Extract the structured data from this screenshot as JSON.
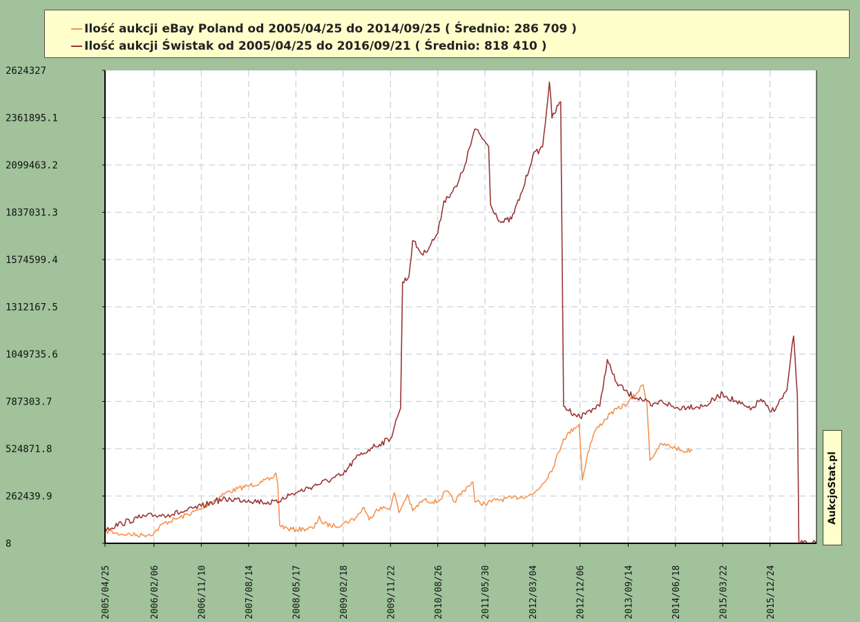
{
  "legend": {
    "items": [
      {
        "label": "Ilość aukcji eBay Poland od 2005/04/25 do 2014/09/25 ( Średnio:  286 709 )",
        "color": "#f4924f"
      },
      {
        "label": "Ilość aukcji Świstak od 2005/04/25 do 2016/09/21 ( Średnio:  818 410 )",
        "color": "#993333"
      }
    ]
  },
  "brand": "AukcjoStat.pl",
  "colors": {
    "background": "#a1c29b",
    "plot_bg": "#ffffff",
    "grid": "#c8d4dc",
    "legend_bg": "#ffffcc"
  },
  "chart_data": {
    "type": "line",
    "x_axis": {
      "type": "date",
      "range": [
        "2005/04/25",
        "2016/09/21"
      ],
      "tick_labels": [
        "2005/04/25",
        "2006/02/06",
        "2006/11/10",
        "2007/08/14",
        "2008/05/17",
        "2009/02/18",
        "2009/11/22",
        "2010/08/26",
        "2011/05/30",
        "2012/03/04",
        "2012/12/06",
        "2013/09/14",
        "2014/06/18",
        "2015/03/22",
        "2015/12/24"
      ]
    },
    "y_axis": {
      "range": [
        8,
        2624327
      ],
      "tick_labels": [
        "8",
        "262439.9",
        "524871.8",
        "787303.7",
        "1049735.6",
        "1312167.5",
        "1574599.4",
        "1837031.3",
        "2099463.2",
        "2361895.1",
        "2624327"
      ]
    },
    "grid": true,
    "series": [
      {
        "name": "Ilość aukcji eBay Poland od 2005/04/25 do 2014/09/25 ( Średnio:  286 709 )",
        "color": "#f4924f",
        "points": [
          [
            "2005/04/25",
            60000
          ],
          [
            "2005/05/25",
            70000
          ],
          [
            "2005/06/25",
            55000
          ],
          [
            "2005/09/01",
            50000
          ],
          [
            "2005/12/01",
            45000
          ],
          [
            "2006/02/06",
            55000
          ],
          [
            "2006/04/01",
            110000
          ],
          [
            "2006/07/01",
            140000
          ],
          [
            "2006/11/10",
            190000
          ],
          [
            "2007/01/10",
            230000
          ],
          [
            "2007/04/01",
            280000
          ],
          [
            "2007/08/14",
            320000
          ],
          [
            "2007/11/01",
            340000
          ],
          [
            "2007/12/30",
            360000
          ],
          [
            "2008/01/20",
            390000
          ],
          [
            "2008/02/01",
            330000
          ],
          [
            "2008/02/12",
            100000
          ],
          [
            "2008/04/01",
            80000
          ],
          [
            "2008/05/17",
            75000
          ],
          [
            "2008/07/01",
            80000
          ],
          [
            "2008/09/01",
            85000
          ],
          [
            "2008/10/01",
            150000
          ],
          [
            "2008/10/20",
            110000
          ],
          [
            "2009/01/01",
            95000
          ],
          [
            "2009/02/18",
            110000
          ],
          [
            "2009/05/01",
            140000
          ],
          [
            "2009/06/20",
            200000
          ],
          [
            "2009/07/20",
            130000
          ],
          [
            "2009/09/01",
            190000
          ],
          [
            "2009/11/22",
            200000
          ],
          [
            "2009/12/15",
            280000
          ],
          [
            "2010/01/10",
            170000
          ],
          [
            "2010/03/01",
            270000
          ],
          [
            "2010/04/01",
            180000
          ],
          [
            "2010/06/01",
            240000
          ],
          [
            "2010/08/26",
            230000
          ],
          [
            "2010/10/15",
            290000
          ],
          [
            "2010/12/01",
            230000
          ],
          [
            "2011/02/10",
            310000
          ],
          [
            "2011/03/20",
            340000
          ],
          [
            "2011/04/01",
            230000
          ],
          [
            "2011/05/30",
            220000
          ],
          [
            "2011/08/01",
            240000
          ],
          [
            "2011/11/01",
            250000
          ],
          [
            "2012/03/04",
            270000
          ],
          [
            "2012/05/01",
            330000
          ],
          [
            "2012/07/01",
            420000
          ],
          [
            "2012/09/01",
            580000
          ],
          [
            "2012/11/01",
            640000
          ],
          [
            "2012/12/01",
            660000
          ],
          [
            "2012/12/20",
            350000
          ],
          [
            "2013/01/20",
            500000
          ],
          [
            "2013/03/01",
            620000
          ],
          [
            "2013/06/01",
            720000
          ],
          [
            "2013/09/14",
            780000
          ],
          [
            "2013/11/01",
            830000
          ],
          [
            "2013/12/10",
            880000
          ],
          [
            "2014/01/01",
            790000
          ],
          [
            "2014/01/20",
            460000
          ],
          [
            "2014/03/01",
            520000
          ],
          [
            "2014/04/01",
            550000
          ],
          [
            "2014/06/18",
            530000
          ],
          [
            "2014/08/01",
            510000
          ],
          [
            "2014/09/25",
            520000
          ]
        ]
      },
      {
        "name": "Ilość aukcji Świstak od 2005/04/25 do 2016/09/21 ( Średnio:  818 410 )",
        "color": "#993333",
        "points": [
          [
            "2005/04/25",
            80000
          ],
          [
            "2005/08/01",
            110000
          ],
          [
            "2005/11/01",
            140000
          ],
          [
            "2006/02/06",
            155000
          ],
          [
            "2006/05/01",
            160000
          ],
          [
            "2006/08/01",
            175000
          ],
          [
            "2006/11/10",
            205000
          ],
          [
            "2007/02/01",
            235000
          ],
          [
            "2007/05/01",
            245000
          ],
          [
            "2007/08/14",
            240000
          ],
          [
            "2007/11/01",
            230000
          ],
          [
            "2008/02/01",
            225000
          ],
          [
            "2008/03/01",
            255000
          ],
          [
            "2008/05/17",
            280000
          ],
          [
            "2008/09/01",
            320000
          ],
          [
            "2009/02/18",
            380000
          ],
          [
            "2009/05/01",
            470000
          ],
          [
            "2009/08/01",
            530000
          ],
          [
            "2009/11/22",
            580000
          ],
          [
            "2010/01/01",
            700000
          ],
          [
            "2010/01/20",
            750000
          ],
          [
            "2010/02/01",
            1450000
          ],
          [
            "2010/03/10",
            1480000
          ],
          [
            "2010/04/01",
            1680000
          ],
          [
            "2010/06/01",
            1600000
          ],
          [
            "2010/08/26",
            1720000
          ],
          [
            "2010/10/01",
            1900000
          ],
          [
            "2010/12/15",
            1980000
          ],
          [
            "2011/02/01",
            2100000
          ],
          [
            "2011/04/01",
            2300000
          ],
          [
            "2011/05/30",
            2230000
          ],
          [
            "2011/06/20",
            2200000
          ],
          [
            "2011/07/01",
            1880000
          ],
          [
            "2011/09/01",
            1780000
          ],
          [
            "2011/11/01",
            1800000
          ],
          [
            "2012/01/01",
            1950000
          ],
          [
            "2012/03/04",
            2150000
          ],
          [
            "2012/05/01",
            2200000
          ],
          [
            "2012/06/10",
            2560000
          ],
          [
            "2012/06/25",
            2360000
          ],
          [
            "2012/08/01",
            2430000
          ],
          [
            "2012/08/15",
            2450000
          ],
          [
            "2012/09/01",
            760000
          ],
          [
            "2012/11/01",
            720000
          ],
          [
            "2012/12/06",
            700000
          ],
          [
            "2013/02/01",
            740000
          ],
          [
            "2013/04/01",
            760000
          ],
          [
            "2013/05/15",
            1020000
          ],
          [
            "2013/07/01",
            900000
          ],
          [
            "2013/09/14",
            830000
          ],
          [
            "2013/12/01",
            800000
          ],
          [
            "2014/02/01",
            760000
          ],
          [
            "2014/04/01",
            790000
          ],
          [
            "2014/06/18",
            750000
          ],
          [
            "2014/09/01",
            760000
          ],
          [
            "2014/12/01",
            760000
          ],
          [
            "2015/03/22",
            830000
          ],
          [
            "2015/06/01",
            790000
          ],
          [
            "2015/09/01",
            740000
          ],
          [
            "2015/11/01",
            800000
          ],
          [
            "2015/12/24",
            730000
          ],
          [
            "2016/02/01",
            760000
          ],
          [
            "2016/04/01",
            850000
          ],
          [
            "2016/05/10",
            1150000
          ],
          [
            "2016/06/01",
            820000
          ],
          [
            "2016/06/10",
            8
          ],
          [
            "2016/09/21",
            8
          ]
        ]
      }
    ]
  }
}
